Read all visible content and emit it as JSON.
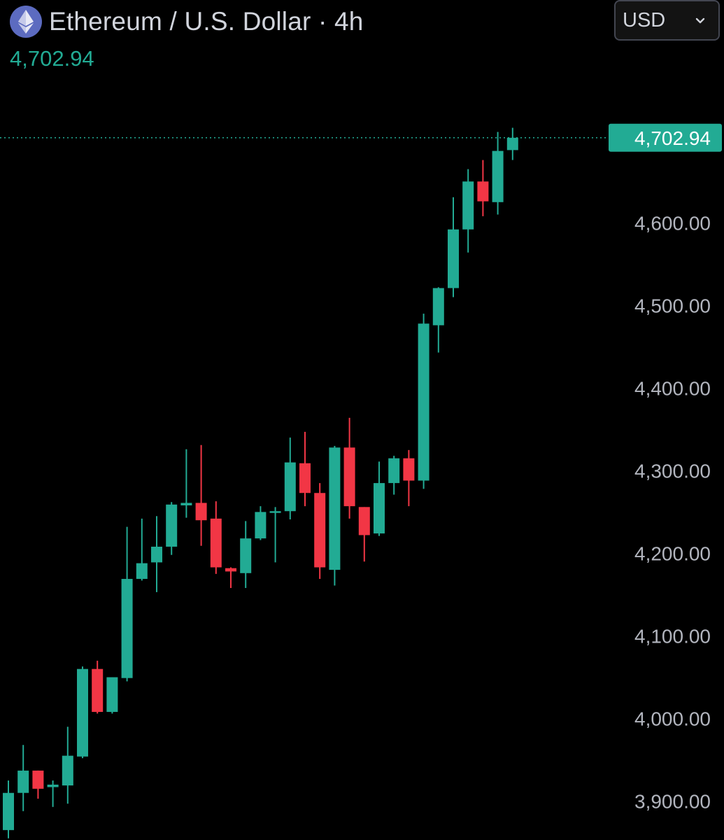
{
  "header": {
    "title": "Ethereum / U.S. Dollar · 4h",
    "last_price": "4,702.94",
    "logo_icon": "ethereum-icon"
  },
  "currency_select": {
    "selected": "USD",
    "icon": "chevron-down-icon"
  },
  "colors": {
    "background": "#000000",
    "up": "#22ab94",
    "down": "#f23645",
    "text": "#d1d4dc",
    "axis_text": "#b2b5be"
  },
  "chart_data": {
    "type": "candlestick",
    "symbol": "Ethereum / U.S. Dollar",
    "interval": "4h",
    "last_price": 4702.94,
    "last_price_label": "4,702.94",
    "y_axis": {
      "position": "right",
      "ticks": [
        3900,
        4000,
        4100,
        4200,
        4300,
        4400,
        4500,
        4600
      ],
      "tick_labels": [
        "3,900.00",
        "4,000.00",
        "4,100.00",
        "4,200.00",
        "4,300.00",
        "4,400.00",
        "4,500.00",
        "4,600.00"
      ],
      "range": [
        3853,
        4768
      ]
    },
    "grid": false,
    "candles": [
      {
        "o": 3865,
        "h": 3925,
        "l": 3855,
        "c": 3910
      },
      {
        "o": 3910,
        "h": 3968,
        "l": 3888,
        "c": 3937
      },
      {
        "o": 3937,
        "h": 3937,
        "l": 3903,
        "c": 3915
      },
      {
        "o": 3917,
        "h": 3925,
        "l": 3893,
        "c": 3920
      },
      {
        "o": 3919,
        "h": 3990,
        "l": 3897,
        "c": 3955
      },
      {
        "o": 3954,
        "h": 4063,
        "l": 3952,
        "c": 4060
      },
      {
        "o": 4060,
        "h": 4070,
        "l": 4006,
        "c": 4008
      },
      {
        "o": 4008,
        "h": 4050,
        "l": 4006,
        "c": 4050
      },
      {
        "o": 4049,
        "h": 4232,
        "l": 4045,
        "c": 4169
      },
      {
        "o": 4169,
        "h": 4242,
        "l": 4167,
        "c": 4188
      },
      {
        "o": 4189,
        "h": 4245,
        "l": 4153,
        "c": 4208
      },
      {
        "o": 4208,
        "h": 4262,
        "l": 4198,
        "c": 4259
      },
      {
        "o": 4258,
        "h": 4326,
        "l": 4243,
        "c": 4261
      },
      {
        "o": 4261,
        "h": 4331,
        "l": 4209,
        "c": 4240
      },
      {
        "o": 4242,
        "h": 4263,
        "l": 4175,
        "c": 4183
      },
      {
        "o": 4182,
        "h": 4183,
        "l": 4158,
        "c": 4178
      },
      {
        "o": 4176,
        "h": 4239,
        "l": 4158,
        "c": 4218
      },
      {
        "o": 4218,
        "h": 4257,
        "l": 4216,
        "c": 4250
      },
      {
        "o": 4250,
        "h": 4256,
        "l": 4189,
        "c": 4251
      },
      {
        "o": 4251,
        "h": 4340,
        "l": 4241,
        "c": 4310
      },
      {
        "o": 4309,
        "h": 4347,
        "l": 4257,
        "c": 4273
      },
      {
        "o": 4273,
        "h": 4285,
        "l": 4169,
        "c": 4183
      },
      {
        "o": 4180,
        "h": 4330,
        "l": 4161,
        "c": 4328
      },
      {
        "o": 4328,
        "h": 4364,
        "l": 4242,
        "c": 4257
      },
      {
        "o": 4256,
        "h": 4256,
        "l": 4190,
        "c": 4222
      },
      {
        "o": 4224,
        "h": 4311,
        "l": 4221,
        "c": 4285
      },
      {
        "o": 4285,
        "h": 4318,
        "l": 4271,
        "c": 4315
      },
      {
        "o": 4315,
        "h": 4325,
        "l": 4257,
        "c": 4288
      },
      {
        "o": 4288,
        "h": 4490,
        "l": 4278,
        "c": 4478
      },
      {
        "o": 4476,
        "h": 4522,
        "l": 4443,
        "c": 4521
      },
      {
        "o": 4521,
        "h": 4631,
        "l": 4510,
        "c": 4592
      },
      {
        "o": 4592,
        "h": 4665,
        "l": 4564,
        "c": 4650
      },
      {
        "o": 4650,
        "h": 4676,
        "l": 4608,
        "c": 4626
      },
      {
        "o": 4625,
        "h": 4710,
        "l": 4610,
        "c": 4687
      },
      {
        "o": 4688,
        "h": 4715,
        "l": 4676,
        "c": 4702.94
      }
    ]
  }
}
